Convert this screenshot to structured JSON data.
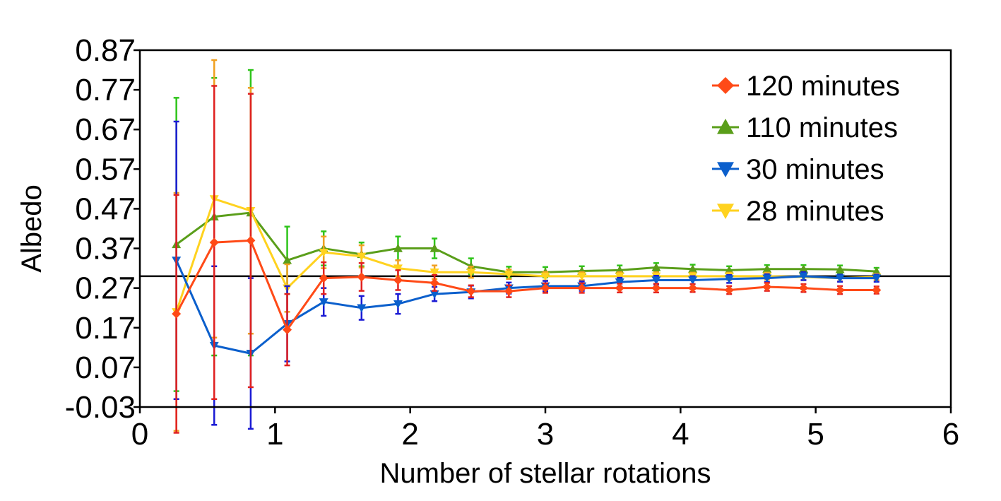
{
  "chart_data": {
    "type": "line",
    "title": "",
    "xlabel": "Number of stellar rotations",
    "ylabel": "Albedo",
    "xlim": [
      0,
      6
    ],
    "ylim": [
      -0.03,
      0.87
    ],
    "xticks": [
      0,
      1,
      2,
      3,
      4,
      5,
      6
    ],
    "xtick_labels": [
      "0",
      "1",
      "2",
      "3",
      "4",
      "5",
      "6"
    ],
    "yticks": [
      -0.03,
      0.07,
      0.17,
      0.27,
      0.37,
      0.47,
      0.57,
      0.67,
      0.77,
      0.87
    ],
    "ytick_labels": [
      "-0.03",
      "0.07",
      "0.17",
      "0.27",
      "0.37",
      "0.47",
      "0.57",
      "0.67",
      "0.77",
      "0.87"
    ],
    "reference_line": 0.3,
    "legend_position": "top-right",
    "grid": false,
    "x": [
      0.27,
      0.55,
      0.82,
      1.09,
      1.36,
      1.64,
      1.91,
      2.18,
      2.45,
      2.73,
      3.0,
      3.27,
      3.55,
      3.82,
      4.09,
      4.36,
      4.64,
      4.91,
      5.18,
      5.45
    ],
    "series": [
      {
        "name": "110 minutes",
        "color": "#5a9e1a",
        "error_color": "#2ec41a",
        "marker": "triangle-up",
        "values": [
          0.38,
          0.45,
          0.46,
          0.34,
          0.37,
          0.355,
          0.37,
          0.37,
          0.325,
          0.31,
          0.31,
          0.313,
          0.315,
          0.322,
          0.318,
          0.315,
          0.318,
          0.318,
          0.317,
          0.312
        ],
        "errors": [
          0.37,
          0.35,
          0.36,
          0.085,
          0.043,
          0.03,
          0.03,
          0.025,
          0.02,
          0.014,
          0.013,
          0.012,
          0.012,
          0.011,
          0.011,
          0.01,
          0.01,
          0.01,
          0.01,
          0.009
        ]
      },
      {
        "name": "28 minutes",
        "color": "#ffd21f",
        "error_color": "#f0a020",
        "marker": "triangle-down",
        "values": [
          0.21,
          0.495,
          0.465,
          0.27,
          0.36,
          0.35,
          0.32,
          0.31,
          0.31,
          0.305,
          0.3,
          0.3,
          0.3,
          0.3,
          0.3,
          0.3,
          0.3,
          0.298,
          0.295,
          0.298
        ],
        "errors": [
          0.3,
          0.35,
          0.31,
          0.06,
          0.04,
          0.028,
          0.02,
          0.017,
          0.014,
          0.012,
          0.011,
          0.01,
          0.01,
          0.01,
          0.009,
          0.009,
          0.009,
          0.008,
          0.008,
          0.008
        ]
      },
      {
        "name": "30 minutes",
        "color": "#0b5fcc",
        "error_color": "#1a1ad4",
        "marker": "triangle-down",
        "values": [
          0.34,
          0.125,
          0.105,
          0.18,
          0.235,
          0.22,
          0.23,
          0.255,
          0.26,
          0.27,
          0.275,
          0.275,
          0.285,
          0.29,
          0.29,
          0.293,
          0.295,
          0.3,
          0.295,
          0.295
        ],
        "errors": [
          0.35,
          0.2,
          0.19,
          0.095,
          0.035,
          0.03,
          0.025,
          0.018,
          0.016,
          0.014,
          0.013,
          0.012,
          0.011,
          0.011,
          0.01,
          0.01,
          0.01,
          0.01,
          0.009,
          0.009
        ]
      },
      {
        "name": "120 minutes",
        "color": "#ff4a17",
        "error_color": "#e02020",
        "marker": "diamond",
        "values": [
          0.205,
          0.385,
          0.39,
          0.165,
          0.295,
          0.298,
          0.29,
          0.283,
          0.262,
          0.262,
          0.27,
          0.27,
          0.27,
          0.27,
          0.27,
          0.265,
          0.273,
          0.27,
          0.265,
          0.265
        ],
        "errors": [
          0.3,
          0.395,
          0.37,
          0.09,
          0.04,
          0.035,
          0.025,
          0.02,
          0.015,
          0.015,
          0.012,
          0.012,
          0.011,
          0.011,
          0.01,
          0.01,
          0.01,
          0.01,
          0.01,
          0.009
        ]
      }
    ],
    "legend": [
      {
        "label": "120 minutes",
        "color": "#ff4a17",
        "marker": "diamond"
      },
      {
        "label": "110 minutes",
        "color": "#5a9e1a",
        "marker": "triangle-up"
      },
      {
        "label": "30 minutes",
        "color": "#0b5fcc",
        "marker": "triangle-down"
      },
      {
        "label": "28 minutes",
        "color": "#ffd21f",
        "marker": "triangle-down"
      }
    ]
  }
}
